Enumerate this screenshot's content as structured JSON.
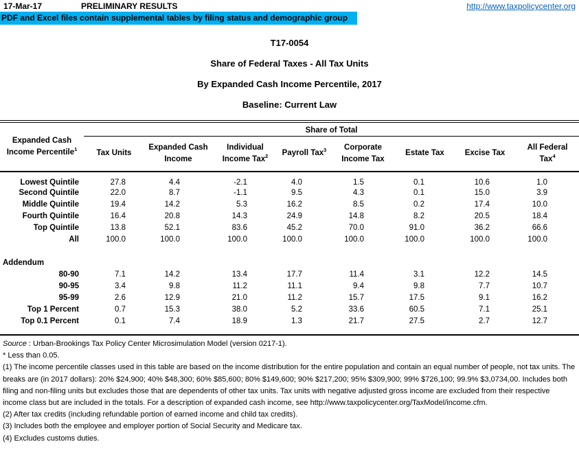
{
  "header": {
    "date": "17-Mar-17",
    "status": "PRELIMINARY RESULTS",
    "link": "http://www.taxpolicycenter.org",
    "banner": "PDF and Excel files contain supplemental tables by filing status and demographic group"
  },
  "colors": {
    "banner_bg": "#00B0F0",
    "link_blue": "#0563C1"
  },
  "title": {
    "code": "T17-0054",
    "name": "Share of Federal Taxes - All Tax Units",
    "subtitle": "By Expanded Cash Income Percentile, 2017",
    "baseline": "Baseline: Current Law"
  },
  "table": {
    "row_axis": {
      "line1": "Expanded Cash",
      "line2": "Income Percentile",
      "sup": "1"
    },
    "span_header": "Share of Total",
    "columns": [
      {
        "line1": "Tax Units",
        "line2": "",
        "sup": ""
      },
      {
        "line1": "Expanded Cash",
        "line2": "Income",
        "sup": ""
      },
      {
        "line1": "Individual",
        "line2": "Income Tax",
        "sup": "2"
      },
      {
        "line1": "Payroll Tax",
        "line2": "",
        "sup": "3"
      },
      {
        "line1": "Corporate",
        "line2": "Income Tax",
        "sup": ""
      },
      {
        "line1": "Estate Tax",
        "line2": "",
        "sup": ""
      },
      {
        "line1": "Excise Tax",
        "line2": "",
        "sup": ""
      },
      {
        "line1": "All Federal",
        "line2": "Tax",
        "sup": "4"
      }
    ],
    "main_rows": [
      {
        "label": "Lowest Quintile",
        "values": [
          "27.8",
          "4.4",
          "-2.1",
          "4.0",
          "1.5",
          "0.1",
          "10.6",
          "1.0"
        ]
      },
      {
        "label": "Second Quintile",
        "values": [
          "22.0",
          "8.7",
          "-1.1",
          "9.5",
          "4.3",
          "0.1",
          "15.0",
          "3.9"
        ]
      },
      {
        "label": "Middle Quintile",
        "values": [
          "19.4",
          "14.2",
          "5.3",
          "16.2",
          "8.5",
          "0.2",
          "17.4",
          "10.0"
        ]
      },
      {
        "label": "Fourth Quintile",
        "values": [
          "16.4",
          "20.8",
          "14.3",
          "24.9",
          "14.8",
          "8.2",
          "20.5",
          "18.4"
        ]
      },
      {
        "label": "Top Quintile",
        "values": [
          "13.8",
          "52.1",
          "83.6",
          "45.2",
          "70.0",
          "91.0",
          "36.2",
          "66.6"
        ]
      },
      {
        "label": "All",
        "values": [
          "100.0",
          "100.0",
          "100.0",
          "100.0",
          "100.0",
          "100.0",
          "100.0",
          "100.0"
        ]
      }
    ],
    "addendum_label": "Addendum",
    "addendum_rows": [
      {
        "label": "80-90",
        "values": [
          "7.1",
          "14.2",
          "13.4",
          "17.7",
          "11.4",
          "3.1",
          "12.2",
          "14.5"
        ]
      },
      {
        "label": "90-95",
        "values": [
          "3.4",
          "9.8",
          "11.2",
          "11.1",
          "9.4",
          "9.8",
          "7.7",
          "10.7"
        ]
      },
      {
        "label": "95-99",
        "values": [
          "2.6",
          "12.9",
          "21.0",
          "11.2",
          "15.7",
          "17.5",
          "9.1",
          "16.2"
        ]
      },
      {
        "label": "Top 1 Percent",
        "values": [
          "0.7",
          "15.3",
          "38.0",
          "5.2",
          "33.6",
          "60.5",
          "7.1",
          "25.1"
        ]
      },
      {
        "label": "Top 0.1 Percent",
        "values": [
          "0.1",
          "7.4",
          "18.9",
          "1.3",
          "21.7",
          "27.5",
          "2.7",
          "12.7"
        ]
      }
    ]
  },
  "footnotes": {
    "source_label": "Source",
    "source_text": " : Urban-Brookings Tax Policy Center Microsimulation Model (version 0217-1).",
    "asterisk": "* Less than 0.05.",
    "note1": "(1) The income percentile classes used in this table are based on the income distribution for the entire population and contain an equal number of people, not tax units. The breaks are (in 2017 dollars): 20% $24,900; 40% $48,300; 60% $85,600; 80% $149,600; 90% $217,200; 95% $309,900; 99% $726,100; 99.9% $3,0734,00. Includes both filing and non-filing units but excludes those that are dependents of other tax units. Tax units with negative adjusted gross income are excluded from their respective income class but are included in the totals. For a description of expanded cash income, see http://www.taxpolicycenter.org/TaxModel/income.cfm.",
    "note2": "(2) After tax credits (including refundable portion of earned income and child tax credits).",
    "note3": "(3) Includes both the employee and employer portion of Social Security and Medicare tax.",
    "note4": "(4) Excludes customs duties."
  }
}
